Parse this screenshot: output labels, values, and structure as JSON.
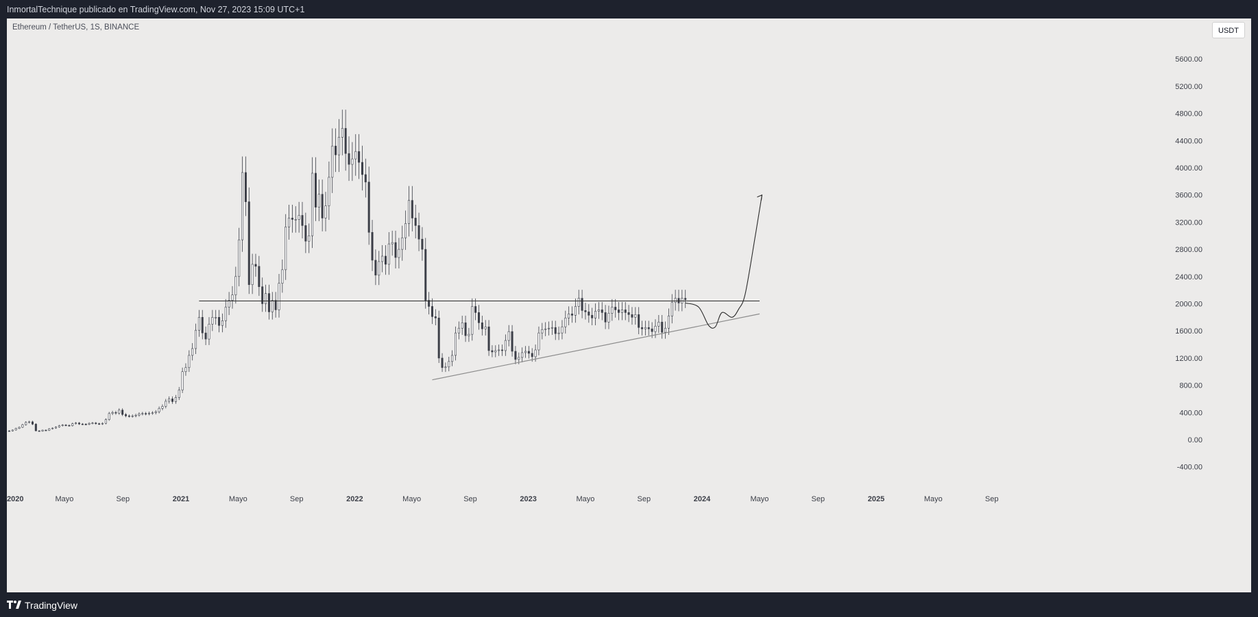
{
  "header": {
    "publisher_line": "InmortalTechnique publicado en TradingView.com, Nov 27, 2023 15:09 UTC+1"
  },
  "symbol_line": "Ethereum / TetherUS, 1S, BINANCE",
  "currency_badge": "USDT",
  "footer": {
    "brand": "TradingView",
    "logo_icon": "tradingview-logo-icon"
  },
  "colors": {
    "background": "#ecebea",
    "candle": "#3c3f48",
    "frame": "#1e222d",
    "line": "#2b2b2b",
    "trendline": "#8c8c8c"
  },
  "chart_data": {
    "type": "candlestick",
    "title": "Ethereum / TetherUS, 1S, BINANCE",
    "ylim": [
      -600,
      6200
    ],
    "y_ticks": [
      -400,
      0,
      400,
      800,
      1200,
      1600,
      2000,
      2400,
      2800,
      3200,
      3600,
      4000,
      4400,
      4800,
      5200,
      5600
    ],
    "y_tick_labels": [
      "-400.00",
      "0.00",
      "400.00",
      "800.00",
      "1200.00",
      "1600.00",
      "2000.00",
      "2400.00",
      "2800.00",
      "3200.00",
      "3600.00",
      "4000.00",
      "4400.00",
      "4800.00",
      "5200.00",
      "5600.00"
    ],
    "x_ticks": [
      {
        "date": "2020-01-01",
        "label": "2020",
        "bold": true
      },
      {
        "date": "2020-05-01",
        "label": "Mayo"
      },
      {
        "date": "2020-09-01",
        "label": "Sep"
      },
      {
        "date": "2021-01-01",
        "label": "2021",
        "bold": true
      },
      {
        "date": "2021-05-01",
        "label": "Mayo"
      },
      {
        "date": "2021-09-01",
        "label": "Sep"
      },
      {
        "date": "2022-01-01",
        "label": "2022",
        "bold": true
      },
      {
        "date": "2022-05-01",
        "label": "Mayo"
      },
      {
        "date": "2022-09-01",
        "label": "Sep"
      },
      {
        "date": "2023-01-01",
        "label": "2023",
        "bold": true
      },
      {
        "date": "2023-05-01",
        "label": "Mayo"
      },
      {
        "date": "2023-09-01",
        "label": "Sep"
      },
      {
        "date": "2024-01-01",
        "label": "2024",
        "bold": true
      },
      {
        "date": "2024-05-01",
        "label": "Mayo"
      },
      {
        "date": "2024-09-01",
        "label": "Sep"
      },
      {
        "date": "2025-01-01",
        "label": "2025",
        "bold": true
      },
      {
        "date": "2025-05-01",
        "label": "Mayo"
      },
      {
        "date": "2025-09-01",
        "label": "Sep"
      }
    ],
    "series": [
      {
        "kind": "weekly-candles",
        "start": "2019-12-30",
        "interval_days": 7,
        "closes": [
          130,
          128,
          142,
          165,
          182,
          220,
          255,
          262,
          228,
          130,
          125,
          140,
          136,
          160,
          170,
          185,
          205,
          215,
          210,
          205,
          235,
          245,
          230,
          228,
          225,
          240,
          245,
          235,
          230,
          240,
          295,
          385,
          400,
          390,
          435,
          370,
          350,
          345,
          350,
          360,
          380,
          385,
          380,
          390,
          395,
          410,
          460,
          490,
          565,
          600,
          560,
          620,
          730,
          1000,
          1060,
          1240,
          1340,
          1610,
          1800,
          1570,
          1480,
          1700,
          1800,
          1800,
          1680,
          1750,
          1950,
          2050,
          2130,
          2400,
          2940,
          3930,
          3500,
          2280,
          2580,
          2550,
          2250,
          2000,
          2150,
          1880,
          2050,
          1910,
          2300,
          2500,
          3130,
          3260,
          3240,
          3240,
          3300,
          3150,
          2920,
          3000,
          3920,
          3420,
          3610,
          3260,
          3440,
          3860,
          4320,
          4190,
          4450,
          4580,
          4210,
          4050,
          4130,
          4240,
          4080,
          3900,
          3790,
          3050,
          2640,
          2420,
          2620,
          2700,
          2580,
          2880,
          2900,
          2680,
          2800,
          2970,
          3180,
          3520,
          3260,
          3150,
          2950,
          2800,
          2050,
          1960,
          1810,
          1790,
          1200,
          1060,
          1070,
          1150,
          1240,
          1570,
          1640,
          1720,
          1530,
          1550,
          1960,
          1870,
          1720,
          1630,
          1660,
          1310,
          1290,
          1310,
          1320,
          1310,
          1460,
          1590,
          1300,
          1180,
          1210,
          1280,
          1300,
          1270,
          1220,
          1320,
          1570,
          1620,
          1630,
          1640,
          1650,
          1560,
          1570,
          1660,
          1790,
          1850,
          1830,
          1960,
          2080,
          1900,
          1880,
          1830,
          1790,
          1890,
          1910,
          1870,
          1730,
          1860,
          1950,
          1910,
          1870,
          1910,
          1870,
          1840,
          1800,
          1840,
          1650,
          1630,
          1650,
          1630,
          1590,
          1670,
          1730,
          1580,
          1640,
          1820,
          2020,
          2080,
          2010,
          2080,
          2060
        ]
      },
      {
        "name": "",
        "kind": "horizontal-line",
        "y": 2040,
        "from": "2021-02-08",
        "to": "2024-05-01"
      },
      {
        "name": "",
        "kind": "trendline",
        "points": [
          [
            "2022-06-13",
            880
          ],
          [
            "2024-05-01",
            1850
          ]
        ]
      },
      {
        "name": "",
        "kind": "projection-path",
        "points": [
          [
            "2023-11-27",
            2010
          ],
          [
            "2023-12-25",
            1950
          ],
          [
            "2024-01-15",
            1680
          ],
          [
            "2024-01-29",
            1660
          ],
          [
            "2024-02-12",
            1870
          ],
          [
            "2024-03-04",
            1800
          ],
          [
            "2024-03-18",
            1920
          ],
          [
            "2024-04-01",
            2150
          ],
          [
            "2024-04-22",
            3000
          ],
          [
            "2024-05-06",
            3600
          ]
        ]
      }
    ]
  }
}
